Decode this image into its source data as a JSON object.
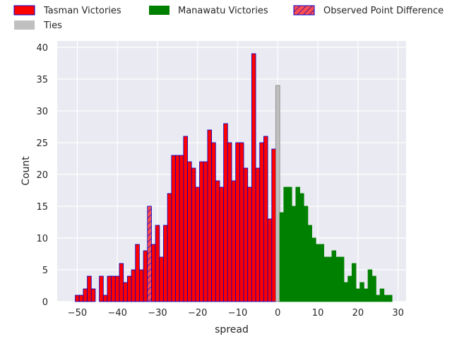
{
  "chart_data": {
    "type": "bar",
    "title": "",
    "xlabel": "spread",
    "ylabel": "Count",
    "xlim": [
      -55,
      32
    ],
    "ylim": [
      0,
      41
    ],
    "grid": true,
    "legend_position": "top",
    "x_ticks": [
      -50,
      -40,
      -30,
      -20,
      -10,
      0,
      10,
      20,
      30
    ],
    "x_tick_labels": [
      "−50",
      "−40",
      "−30",
      "−20",
      "−10",
      "0",
      "10",
      "20",
      "30"
    ],
    "y_ticks": [
      0,
      5,
      10,
      15,
      20,
      25,
      30,
      35,
      40
    ],
    "y_tick_labels": [
      "0",
      "5",
      "10",
      "15",
      "20",
      "25",
      "30",
      "35",
      "40"
    ],
    "bin_width": 1,
    "series": [
      {
        "name": "Tasman Victories",
        "color": "#ff0000",
        "edge_color": "#0000cc",
        "x": [
          -50,
          -49,
          -48,
          -47,
          -46,
          -45,
          -44,
          -43,
          -42,
          -41,
          -40,
          -39,
          -38,
          -37,
          -36,
          -35,
          -34,
          -33,
          -32,
          -31,
          -30,
          -29,
          -28,
          -27,
          -26,
          -25,
          -24,
          -23,
          -22,
          -21,
          -20,
          -19,
          -18,
          -17,
          -16,
          -15,
          -14,
          -13,
          -12,
          -11,
          -10,
          -9,
          -8,
          -7,
          -6,
          -5,
          -4,
          -3,
          -2,
          -1
        ],
        "values": [
          1,
          1,
          2,
          4,
          2,
          0,
          4,
          1,
          4,
          4,
          4,
          6,
          3,
          4,
          5,
          9,
          5,
          8,
          15,
          9,
          12,
          7,
          12,
          17,
          23,
          23,
          23,
          26,
          22,
          21,
          18,
          22,
          22,
          27,
          25,
          19,
          18,
          28,
          25,
          19,
          25,
          25,
          21,
          18,
          39,
          21,
          25,
          26,
          13,
          24
        ]
      },
      {
        "name": "Ties",
        "color": "#c0c0c0",
        "edge_color": "#808080",
        "x": [
          0
        ],
        "values": [
          34
        ]
      },
      {
        "name": "Manawatu Victories",
        "color": "#008000",
        "edge_color": "#008000",
        "x": [
          1,
          2,
          3,
          4,
          5,
          6,
          7,
          8,
          9,
          10,
          11,
          12,
          13,
          14,
          15,
          16,
          17,
          18,
          19,
          20,
          21,
          22,
          23,
          24,
          25,
          26,
          27,
          28
        ],
        "values": [
          14,
          18,
          18,
          15,
          18,
          17,
          15,
          12,
          10,
          9,
          9,
          7,
          7,
          8,
          7,
          7,
          3,
          4,
          6,
          2,
          3,
          2,
          5,
          4,
          1,
          2,
          1,
          1
        ]
      }
    ],
    "annotation": {
      "name": "Observed Point Difference",
      "x": -32,
      "color": "#ff4d4d",
      "edge_color": "#0000cc",
      "hatch": "/"
    }
  }
}
